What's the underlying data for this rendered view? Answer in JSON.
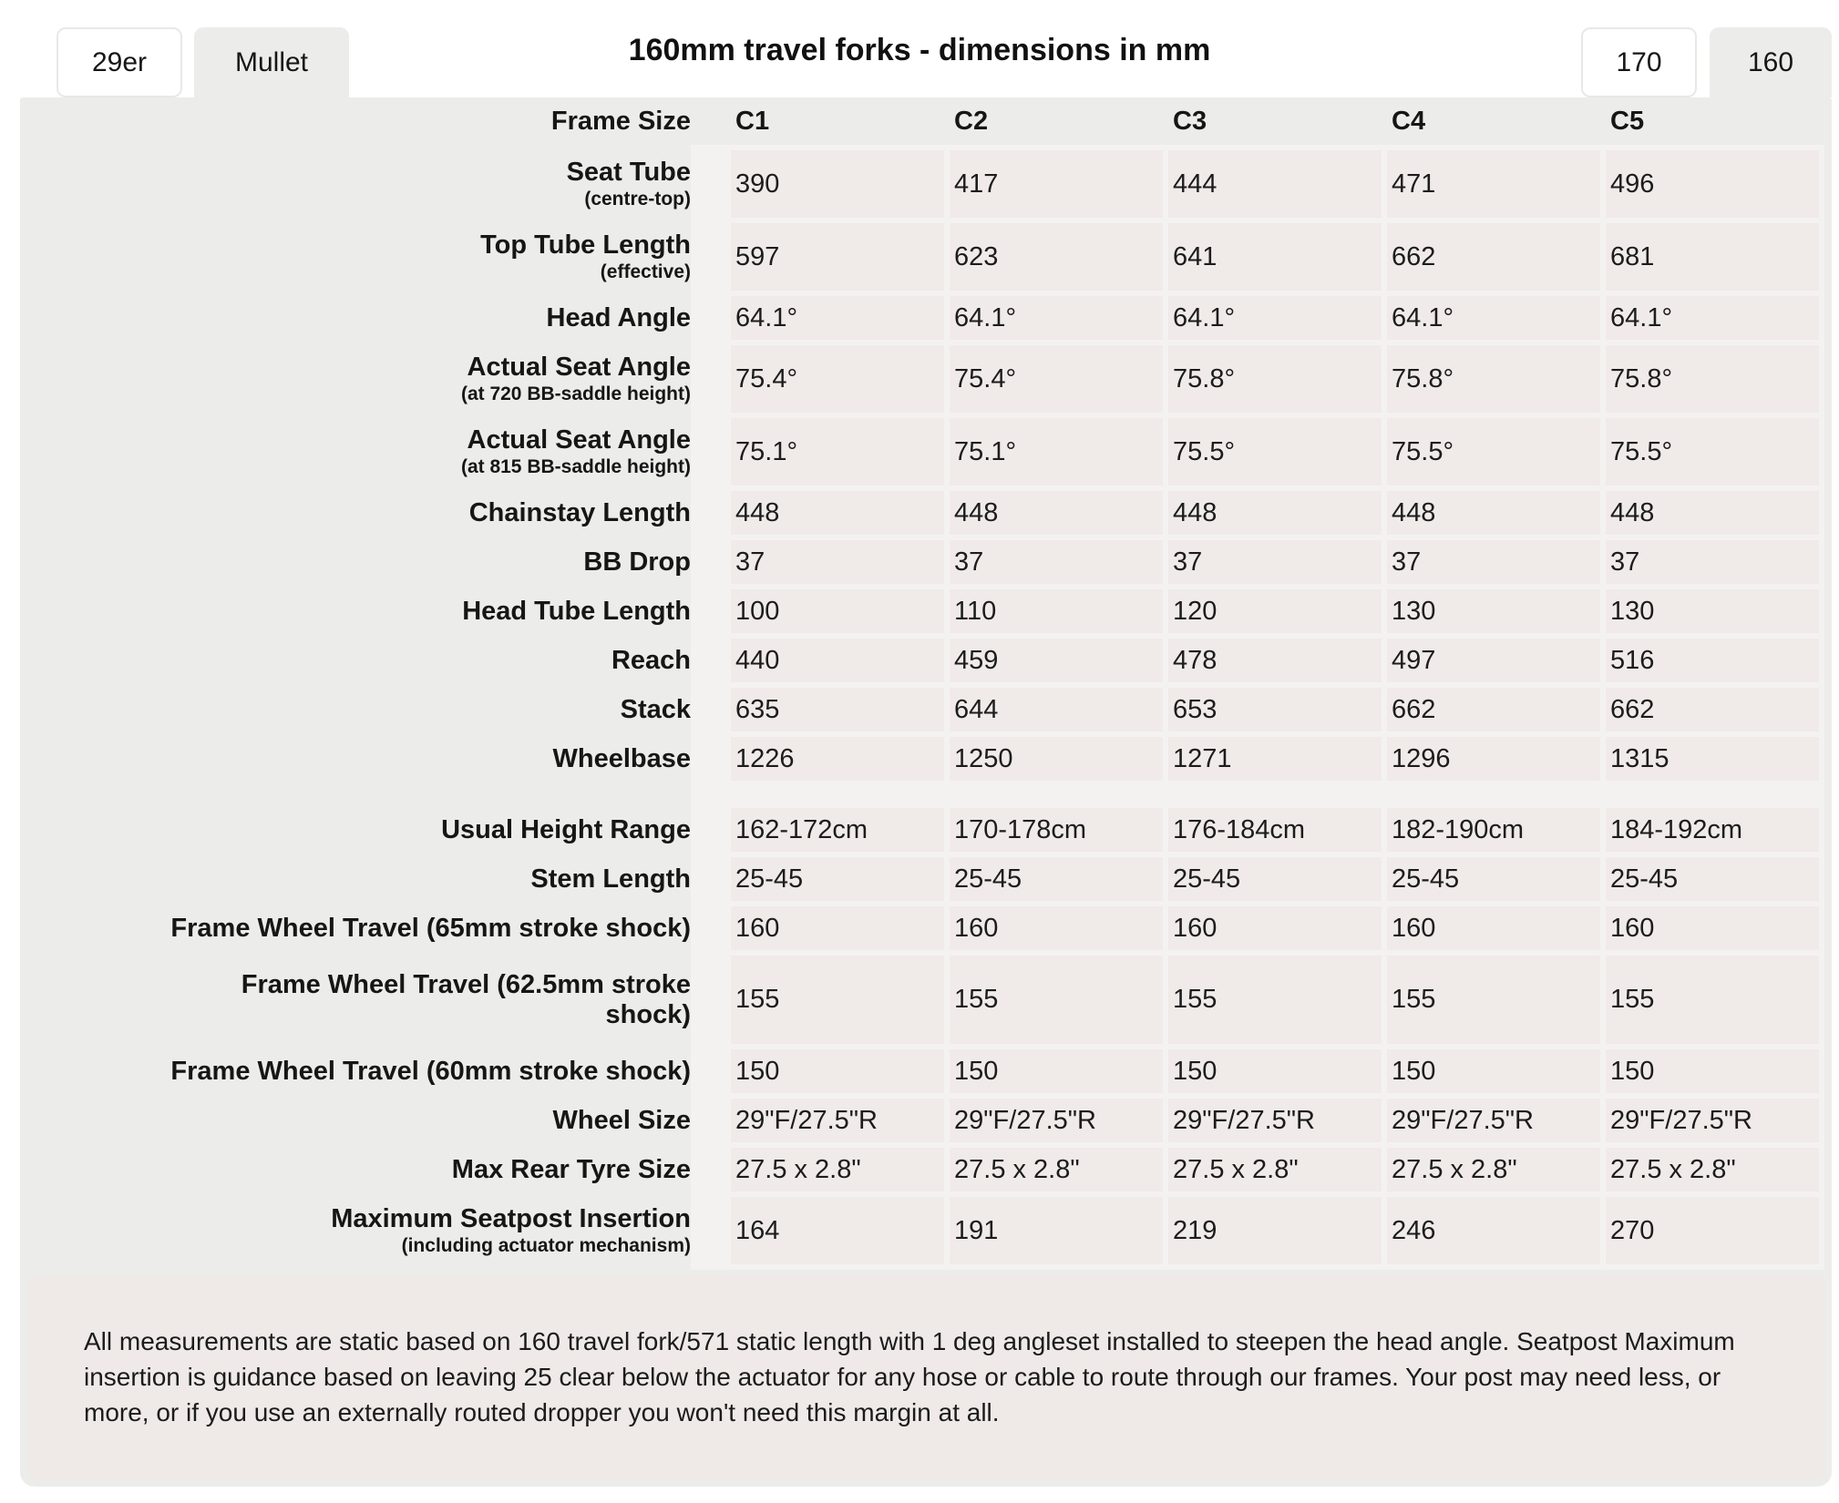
{
  "title": "160mm travel forks - dimensions in mm",
  "tabs": {
    "left": [
      {
        "label": "29er",
        "active": false
      },
      {
        "label": "Mullet",
        "active": true
      }
    ],
    "right": [
      {
        "label": "170",
        "active": false
      },
      {
        "label": "160",
        "active": true
      }
    ]
  },
  "table": {
    "corner_label": "Frame Size",
    "columns": [
      "C1",
      "C2",
      "C3",
      "C4",
      "C5"
    ],
    "sections": [
      {
        "rows": [
          {
            "label": "Seat Tube",
            "sub": "(centre-top)",
            "size": "t",
            "values": [
              "390",
              "417",
              "444",
              "471",
              "496"
            ]
          },
          {
            "label": "Top Tube Length",
            "sub": "(effective)",
            "size": "t",
            "values": [
              "597",
              "623",
              "641",
              "662",
              "681"
            ]
          },
          {
            "label": "Head Angle",
            "size": "s",
            "values": [
              "64.1°",
              "64.1°",
              "64.1°",
              "64.1°",
              "64.1°"
            ]
          },
          {
            "label": "Actual Seat Angle",
            "sub": "(at 720 BB-saddle height)",
            "size": "t",
            "values": [
              "75.4°",
              "75.4°",
              "75.8°",
              "75.8°",
              "75.8°"
            ]
          },
          {
            "label": "Actual Seat Angle",
            "sub": "(at 815 BB-saddle height)",
            "size": "t",
            "values": [
              "75.1°",
              "75.1°",
              "75.5°",
              "75.5°",
              "75.5°"
            ]
          },
          {
            "label": "Chainstay Length",
            "size": "s",
            "values": [
              "448",
              "448",
              "448",
              "448",
              "448"
            ]
          },
          {
            "label": "BB Drop",
            "size": "s",
            "values": [
              "37",
              "37",
              "37",
              "37",
              "37"
            ]
          },
          {
            "label": "Head Tube Length",
            "size": "s",
            "values": [
              "100",
              "110",
              "120",
              "130",
              "130"
            ]
          },
          {
            "label": "Reach",
            "size": "s",
            "values": [
              "440",
              "459",
              "478",
              "497",
              "516"
            ]
          },
          {
            "label": "Stack",
            "size": "s",
            "values": [
              "635",
              "644",
              "653",
              "662",
              "662"
            ]
          },
          {
            "label": "Wheelbase",
            "size": "s",
            "values": [
              "1226",
              "1250",
              "1271",
              "1296",
              "1315"
            ]
          }
        ]
      },
      {
        "rows": [
          {
            "label": "Usual Height Range",
            "size": "s",
            "values": [
              "162-172cm",
              "170-178cm",
              "176-184cm",
              "182-190cm",
              "184-192cm"
            ]
          },
          {
            "label": "Stem Length",
            "size": "s",
            "values": [
              "25-45",
              "25-45",
              "25-45",
              "25-45",
              "25-45"
            ]
          },
          {
            "label": "Frame Wheel Travel (65mm stroke shock)",
            "size": "s",
            "values": [
              "160",
              "160",
              "160",
              "160",
              "160"
            ]
          },
          {
            "label": "Frame Wheel Travel (62.5mm stroke\nshock)",
            "size": "x",
            "values": [
              "155",
              "155",
              "155",
              "155",
              "155"
            ]
          },
          {
            "label": "Frame Wheel Travel (60mm stroke shock)",
            "size": "s",
            "values": [
              "150",
              "150",
              "150",
              "150",
              "150"
            ]
          },
          {
            "label": "Wheel Size",
            "size": "s",
            "values": [
              "29\"F/27.5\"R",
              "29\"F/27.5\"R",
              "29\"F/27.5\"R",
              "29\"F/27.5\"R",
              "29\"F/27.5\"R"
            ]
          },
          {
            "label": "Max Rear Tyre Size",
            "size": "s",
            "values": [
              "27.5 x 2.8\"",
              "27.5 x 2.8\"",
              "27.5 x 2.8\"",
              "27.5 x 2.8\"",
              "27.5 x 2.8\""
            ]
          },
          {
            "label": "Maximum Seatpost Insertion",
            "sub": "(including actuator mechanism)",
            "size": "t",
            "values": [
              "164",
              "191",
              "219",
              "246",
              "270"
            ]
          }
        ]
      }
    ]
  },
  "footnote": "All measurements are static based on 160 travel fork/571 static length with 1 deg angleset installed to steepen the head angle. Seatpost Maximum insertion is guidance based on leaving 25 clear below the actuator for any hose or cable to route through our frames. Your post may need less, or more, or if you use an externally routed dropper you won't need this margin at all.",
  "colors": {
    "sheet_gray": "#ECECEB",
    "cell_pink": "#F0EAE8",
    "gap_light": "#F4F2F0",
    "footer_pink": "#EFE9E7",
    "tab_border": "#E9E8E5",
    "text_dark": "#161616"
  }
}
